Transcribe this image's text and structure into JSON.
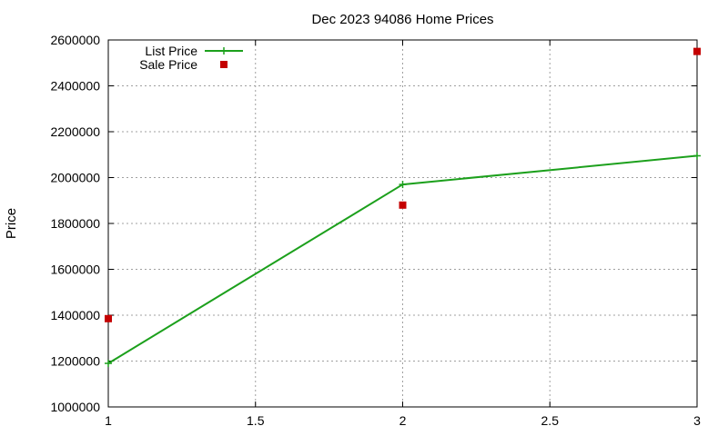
{
  "chart_data": {
    "type": "line",
    "title": "Dec 2023 94086 Home Prices",
    "xlabel": "",
    "ylabel": "Price",
    "x": [
      1,
      2,
      3
    ],
    "xlim": [
      1,
      3
    ],
    "ylim": [
      1000000,
      2600000
    ],
    "xticks": [
      "1",
      "1.5",
      "2",
      "2.5",
      "3"
    ],
    "yticks": [
      "1000000",
      "1200000",
      "1400000",
      "1600000",
      "1800000",
      "2000000",
      "2200000",
      "2400000",
      "2600000"
    ],
    "grid": true,
    "legend_position": "top-left",
    "series": [
      {
        "name": "List Price",
        "style": "line+cross-marker",
        "color": "#1ca01c",
        "values": [
          1190000,
          1970000,
          2095000
        ]
      },
      {
        "name": "Sale Price",
        "style": "square-marker",
        "color": "#c40000",
        "values": [
          1385000,
          1880000,
          2550000
        ]
      }
    ]
  }
}
